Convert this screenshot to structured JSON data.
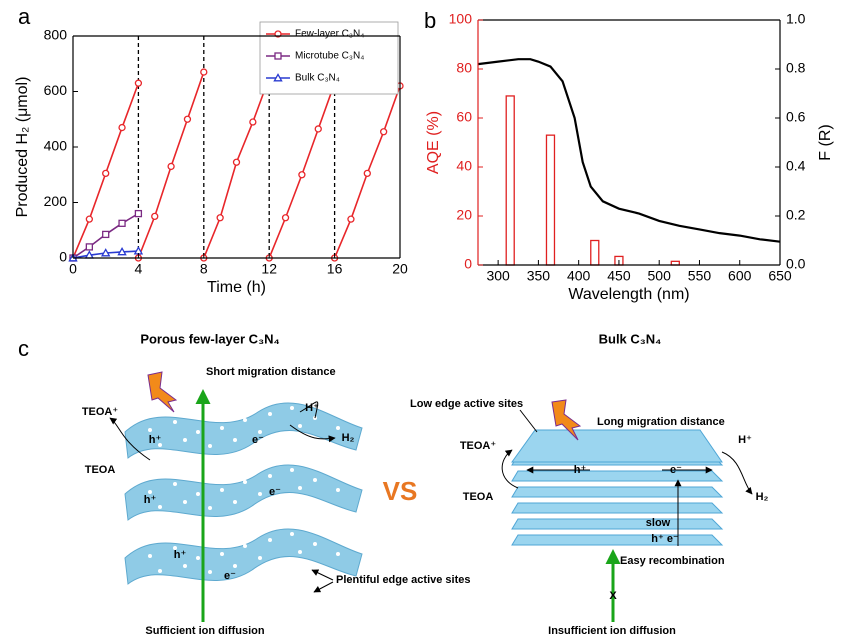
{
  "chart_data": [
    {
      "type": "line",
      "panel": "a",
      "xlabel": "Time (h)",
      "ylabel": "Produced H₂ (μmol)",
      "xlim": [
        0,
        20
      ],
      "xticks": [
        0,
        4,
        8,
        12,
        16,
        20
      ],
      "ylim": [
        0,
        800
      ],
      "yticks": [
        0,
        200,
        400,
        600,
        800
      ],
      "vlines": [
        4,
        8,
        12,
        16
      ],
      "legend": "upper right",
      "series": [
        {
          "name": "Few-layer C₃N₄",
          "color": "#e8262a",
          "marker": "circle",
          "x": [
            0,
            1,
            2,
            3,
            4,
            4,
            4,
            5,
            6,
            7,
            8,
            8,
            8,
            9,
            10,
            11,
            12,
            12,
            12,
            13,
            14,
            15,
            16,
            16,
            16,
            17,
            18,
            19,
            20
          ],
          "values": [
            0,
            140,
            305,
            470,
            630,
            null,
            0,
            150,
            330,
            500,
            670,
            null,
            0,
            145,
            345,
            490,
            650,
            null,
            0,
            145,
            300,
            465,
            630,
            null,
            0,
            140,
            305,
            455,
            620
          ]
        },
        {
          "name": "Microtube C₃N₄",
          "color": "#7b2a83",
          "marker": "square",
          "x": [
            0,
            1,
            2,
            3,
            4
          ],
          "values": [
            0,
            40,
            85,
            125,
            160
          ]
        },
        {
          "name": "Bulk C₃N₄",
          "color": "#2a3bd1",
          "marker": "triangle",
          "x": [
            0,
            1,
            2,
            3,
            4
          ],
          "values": [
            0,
            10,
            18,
            22,
            25
          ]
        }
      ]
    },
    {
      "type": "bar",
      "panel": "b",
      "xlabel": "Wavelength (nm)",
      "ylabel": "AQE (%)",
      "y2label": "F (R)",
      "yaxis_color": "#e02020",
      "xlim": [
        275,
        650
      ],
      "xticks": [
        300,
        350,
        400,
        450,
        500,
        550,
        600,
        650
      ],
      "ylim": [
        0,
        100
      ],
      "yticks": [
        0,
        20,
        40,
        60,
        80,
        100
      ],
      "y2lim": [
        0,
        1
      ],
      "y2ticks": [
        {
          "value": 0,
          "label": "0.0"
        },
        0.2,
        0.4,
        0.6,
        0.8,
        {
          "value": 1,
          "label": "1.0"
        }
      ],
      "series": [
        {
          "type": "bar",
          "color": "#e02020",
          "x": [
            315,
            365,
            420,
            450,
            520
          ],
          "values": [
            69,
            53,
            10,
            3.5,
            1.5
          ]
        },
        {
          "type": "line",
          "axis": "y2",
          "color": "#000000",
          "x": [
            275,
            300,
            325,
            340,
            350,
            365,
            380,
            395,
            405,
            415,
            430,
            450,
            475,
            500,
            525,
            550,
            575,
            600,
            625,
            650
          ],
          "values": [
            0.82,
            0.83,
            0.84,
            0.84,
            0.83,
            0.81,
            0.75,
            0.6,
            0.42,
            0.32,
            0.26,
            0.23,
            0.21,
            0.18,
            0.16,
            0.145,
            0.13,
            0.12,
            0.105,
            0.095
          ]
        }
      ]
    }
  ],
  "diagram": {
    "panel": "c",
    "vs": "VS",
    "left": {
      "title": "Porous few-layer C₃N₄",
      "labels": [
        "Short migration distance",
        "H⁺",
        "e⁻",
        "H₂",
        "TEOA⁺",
        "h⁺",
        "TEOA",
        "h⁺",
        "e⁻",
        "h⁺",
        "e⁻",
        "Plentiful edge active sites",
        "Sufficient ion diffusion"
      ]
    },
    "right": {
      "title": "Bulk C₃N₄",
      "labels": [
        "Low edge active sites",
        "Long migration distance",
        "TEOA⁺",
        "H⁺",
        "h⁺",
        "e⁻",
        "TEOA",
        "H₂",
        "slow",
        "h⁺ e⁻",
        "Easy  recombination",
        "X",
        "Insufficient ion diffusion"
      ]
    }
  }
}
